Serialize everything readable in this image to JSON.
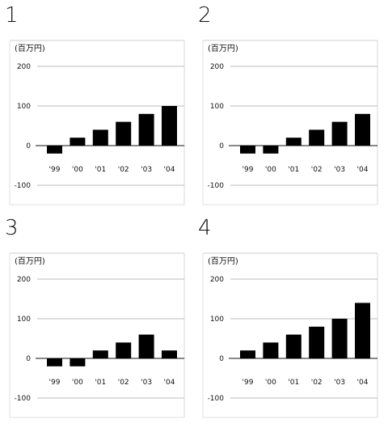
{
  "chart_data": [
    {
      "type": "bar",
      "panel_label": "1",
      "unit_label": "(百万円)",
      "categories": [
        "'99",
        "'00",
        "'01",
        "'02",
        "'03",
        "'04"
      ],
      "values": [
        -20,
        20,
        40,
        60,
        80,
        100
      ],
      "yticks": [
        200,
        100,
        0,
        -100
      ],
      "ylim": [
        -100,
        200
      ]
    },
    {
      "type": "bar",
      "panel_label": "2",
      "unit_label": "(百万円)",
      "categories": [
        "'99",
        "'00",
        "'01",
        "'02",
        "'03",
        "'04"
      ],
      "values": [
        -20,
        -20,
        20,
        40,
        60,
        80
      ],
      "yticks": [
        200,
        100,
        0,
        -100
      ],
      "ylim": [
        -100,
        200
      ]
    },
    {
      "type": "bar",
      "panel_label": "3",
      "unit_label": "(百万円)",
      "categories": [
        "'99",
        "'00",
        "'01",
        "'02",
        "'03",
        "'04"
      ],
      "values": [
        -20,
        -20,
        20,
        40,
        60,
        20
      ],
      "yticks": [
        200,
        100,
        0,
        -100
      ],
      "ylim": [
        -100,
        200
      ]
    },
    {
      "type": "bar",
      "panel_label": "4",
      "unit_label": "(百万円)",
      "categories": [
        "'99",
        "'00",
        "'01",
        "'02",
        "'03",
        "'04"
      ],
      "values": [
        20,
        40,
        60,
        80,
        100,
        140
      ],
      "yticks": [
        200,
        100,
        0,
        -100
      ],
      "ylim": [
        -100,
        200
      ]
    }
  ]
}
